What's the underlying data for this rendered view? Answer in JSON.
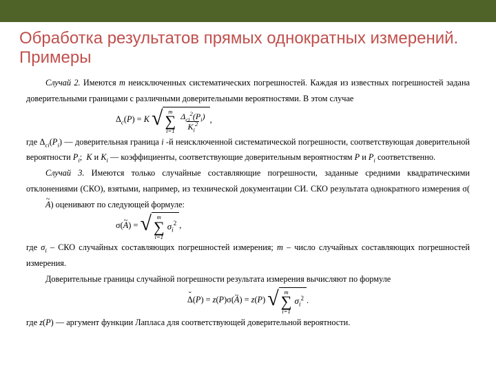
{
  "colors": {
    "title_bar_bg": "#4f6228",
    "title_text": "#c0504d",
    "body_text": "#000000",
    "page_bg": "#ffffff"
  },
  "typography": {
    "title_family": "Arial",
    "title_size_pt": 24,
    "body_family": "Times New Roman",
    "body_size_pt": 12.3,
    "body_line_height": 1.85
  },
  "title": "Обработка результатов прямых однократных измерений. Примеры",
  "body": {
    "case2_label": "Случай 2.",
    "case2_a": " Имеются ",
    "case2_m": "m",
    "case2_b": " неисключенных систематических погрешностей. Каждая из известных погрешностей задана доверительными границами с различными доверительными вероятностями.  В этом случае",
    "after_f1_a": "где  Δ",
    "after_f1_b": " — доверительная граница ",
    "after_f1_c": " -й неисключенной систематической погрешности, соответствующая  доверительной  вероятности ",
    "after_f1_d": " и ",
    "after_f1_e": " — коэффициенты, соответствующие доверительным вероятностям ",
    "after_f1_f": " и ",
    "after_f1_g": " соответственно.",
    "case3_label": "Случай 3.",
    "case3_a": " Имеются только случайные составляющие погрешности, заданные средними квадратическими отклонениями (СКО), взятыми, например, из технической документации СИ. СКО результата однократного измерения σ(",
    "case3_b": ") оценивают по следующей  формуле:",
    "after_f2_a": "где ",
    "after_f2_b": " – СКО случайных составляющих погрешностей измерения; ",
    "after_f2_c": " – число случайных составляющих погрешностей измерения.",
    "conf_bounds": "Доверительные границы случайной погрешности результата измерения вычисляют  по формуле",
    "after_f3": "где ",
    "after_f3_b": " — аргумент функции Лапласа для соответствующей доверительной вероятности.",
    "sym": {
      "Delta_c": "Δ",
      "sub_c": "c",
      "sub_ci": "ci",
      "P": "P",
      "Pi": "P",
      "K": "K",
      "Ki": "K",
      "i": "i",
      "m": "m",
      "sigma": "σ",
      "sigma_i": "σ",
      "A": "A",
      "z": "z",
      "eq": " = ",
      "sum_low": "i=1",
      "punct_comma": ",",
      "punct_semi": ";",
      "punct_period": ".",
      "open": "(",
      "close": ")"
    }
  }
}
